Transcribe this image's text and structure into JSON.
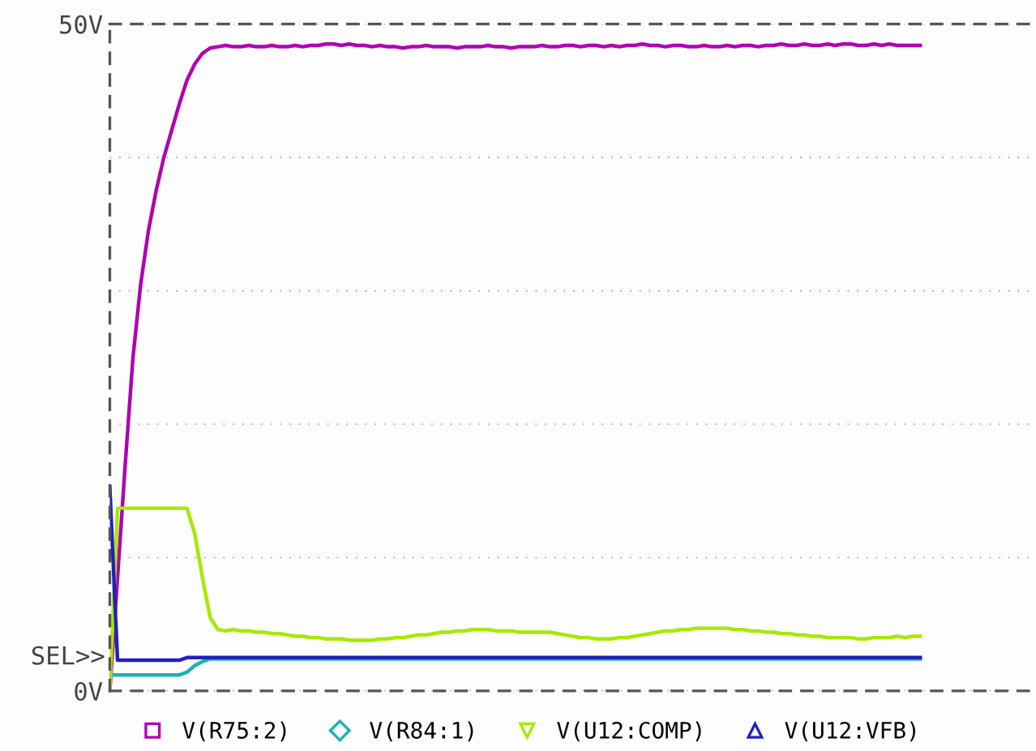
{
  "chart_data": {
    "type": "line",
    "categories": [
      null,
      null,
      null,
      null,
      null,
      null,
      null,
      null,
      null,
      null,
      null,
      null,
      null,
      null,
      null,
      null,
      null,
      null,
      null,
      null,
      null,
      null,
      null,
      null,
      null,
      null,
      null,
      null,
      null,
      null,
      null,
      null,
      null,
      null,
      null,
      null,
      null,
      null,
      null,
      null,
      null,
      null,
      null,
      null,
      null,
      null,
      null,
      null,
      null,
      null,
      null,
      null,
      null,
      null,
      null,
      null,
      null,
      null,
      null,
      null,
      null,
      null,
      null,
      null,
      null,
      null,
      null,
      null,
      null,
      null,
      null,
      null,
      null,
      null,
      null,
      null,
      null,
      null,
      null,
      null,
      null,
      null,
      null,
      null,
      null,
      null,
      null,
      null,
      null,
      null,
      null,
      null,
      null,
      null,
      null,
      null,
      null,
      null,
      null,
      null,
      null,
      null,
      null,
      null,
      null,
      null,
      null,
      null,
      null,
      null,
      null,
      null,
      null,
      null,
      null,
      null,
      null,
      null,
      null,
      null,
      null
    ],
    "series": [
      {
        "name": "V(R75:2)",
        "color": "#b000b0",
        "values": [
          0,
          8.5,
          17,
          25,
          30.5,
          34.5,
          37.5,
          40,
          42,
          44,
          45.8,
          47,
          47.8,
          48.2,
          48.3,
          48.4,
          48.3,
          48.3,
          48.4,
          48.3,
          48.3,
          48.4,
          48.3,
          48.3,
          48.4,
          48.3,
          48.4,
          48.4,
          48.5,
          48.5,
          48.4,
          48.5,
          48.4,
          48.4,
          48.3,
          48.4,
          48.3,
          48.3,
          48.2,
          48.3,
          48.3,
          48.4,
          48.3,
          48.3,
          48.3,
          48.2,
          48.3,
          48.3,
          48.3,
          48.4,
          48.3,
          48.3,
          48.2,
          48.3,
          48.3,
          48.3,
          48.4,
          48.3,
          48.3,
          48.4,
          48.4,
          48.3,
          48.4,
          48.4,
          48.3,
          48.4,
          48.3,
          48.4,
          48.4,
          48.5,
          48.4,
          48.4,
          48.3,
          48.4,
          48.4,
          48.3,
          48.3,
          48.4,
          48.3,
          48.3,
          48.4,
          48.3,
          48.4,
          48.4,
          48.3,
          48.4,
          48.4,
          48.5,
          48.4,
          48.4,
          48.5,
          48.4,
          48.4,
          48.5,
          48.4,
          48.5,
          48.5,
          48.4,
          48.4,
          48.5,
          48.4,
          48.5,
          48.4,
          48.4,
          48.4,
          48.4,
          null,
          null,
          null,
          null,
          null,
          null,
          null,
          null,
          null,
          null,
          null,
          null,
          null,
          null,
          null
        ]
      },
      {
        "name": "V(R84:1)",
        "color": "#20b0b0",
        "values": [
          1.2,
          1.2,
          1.2,
          1.2,
          1.2,
          1.2,
          1.2,
          1.2,
          1.2,
          1.2,
          1.4,
          1.9,
          2.2,
          2.4,
          2.4,
          2.4,
          2.4,
          2.4,
          2.4,
          2.4,
          2.4,
          2.4,
          2.4,
          2.4,
          2.4,
          2.4,
          2.4,
          2.4,
          2.4,
          2.4,
          2.4,
          2.4,
          2.4,
          2.4,
          2.4,
          2.4,
          2.4,
          2.4,
          2.4,
          2.4,
          2.4,
          2.4,
          2.4,
          2.4,
          2.4,
          2.4,
          2.4,
          2.4,
          2.4,
          2.4,
          2.4,
          2.4,
          2.4,
          2.4,
          2.4,
          2.4,
          2.4,
          2.4,
          2.4,
          2.4,
          2.4,
          2.4,
          2.4,
          2.4,
          2.4,
          2.4,
          2.4,
          2.4,
          2.4,
          2.4,
          2.4,
          2.4,
          2.4,
          2.4,
          2.4,
          2.4,
          2.4,
          2.4,
          2.4,
          2.4,
          2.4,
          2.4,
          2.4,
          2.4,
          2.4,
          2.4,
          2.4,
          2.4,
          2.4,
          2.4,
          2.4,
          2.4,
          2.4,
          2.4,
          2.4,
          2.4,
          2.4,
          2.4,
          2.4,
          2.4,
          2.4,
          2.4,
          2.4,
          2.4,
          2.4,
          2.4,
          null,
          null,
          null,
          null,
          null,
          null,
          null,
          null,
          null,
          null,
          null,
          null,
          null,
          null,
          null
        ]
      },
      {
        "name": "V(U12:COMP)",
        "color": "#a8e800",
        "values": [
          0,
          13.7,
          13.7,
          13.7,
          13.7,
          13.7,
          13.7,
          13.7,
          13.7,
          13.7,
          13.7,
          11.8,
          8.5,
          5.5,
          4.6,
          4.5,
          4.6,
          4.5,
          4.5,
          4.4,
          4.4,
          4.3,
          4.3,
          4.2,
          4.1,
          4.1,
          4.0,
          4.0,
          3.9,
          3.9,
          3.9,
          3.8,
          3.8,
          3.8,
          3.8,
          3.9,
          3.9,
          4.0,
          4.0,
          4.1,
          4.2,
          4.2,
          4.3,
          4.4,
          4.4,
          4.5,
          4.5,
          4.6,
          4.6,
          4.6,
          4.5,
          4.5,
          4.5,
          4.4,
          4.4,
          4.4,
          4.4,
          4.4,
          4.3,
          4.2,
          4.1,
          4.0,
          4.0,
          3.9,
          3.9,
          3.9,
          4.0,
          4.0,
          4.1,
          4.2,
          4.3,
          4.4,
          4.5,
          4.5,
          4.6,
          4.6,
          4.7,
          4.7,
          4.7,
          4.7,
          4.7,
          4.6,
          4.6,
          4.5,
          4.5,
          4.4,
          4.4,
          4.3,
          4.3,
          4.2,
          4.2,
          4.1,
          4.1,
          4.0,
          4.0,
          4.0,
          4.0,
          3.9,
          3.9,
          4.0,
          4.0,
          4.0,
          4.1,
          4.0,
          4.1,
          4.1,
          null,
          null,
          null,
          null,
          null,
          null,
          null,
          null,
          null,
          null,
          null,
          null,
          null,
          null,
          null
        ]
      },
      {
        "name": "V(U12:VFB)",
        "color": "#2020c0",
        "values": [
          15.3,
          2.3,
          2.3,
          2.3,
          2.3,
          2.3,
          2.3,
          2.3,
          2.3,
          2.3,
          2.5,
          2.5,
          2.5,
          2.5,
          2.5,
          2.5,
          2.5,
          2.5,
          2.5,
          2.5,
          2.5,
          2.5,
          2.5,
          2.5,
          2.5,
          2.5,
          2.5,
          2.5,
          2.5,
          2.5,
          2.5,
          2.5,
          2.5,
          2.5,
          2.5,
          2.5,
          2.5,
          2.5,
          2.5,
          2.5,
          2.5,
          2.5,
          2.5,
          2.5,
          2.5,
          2.5,
          2.5,
          2.5,
          2.5,
          2.5,
          2.5,
          2.5,
          2.5,
          2.5,
          2.5,
          2.5,
          2.5,
          2.5,
          2.5,
          2.5,
          2.5,
          2.5,
          2.5,
          2.5,
          2.5,
          2.5,
          2.5,
          2.5,
          2.5,
          2.5,
          2.5,
          2.5,
          2.5,
          2.5,
          2.5,
          2.5,
          2.5,
          2.5,
          2.5,
          2.5,
          2.5,
          2.5,
          2.5,
          2.5,
          2.5,
          2.5,
          2.5,
          2.5,
          2.5,
          2.5,
          2.5,
          2.5,
          2.5,
          2.5,
          2.5,
          2.5,
          2.5,
          2.5,
          2.5,
          2.5,
          2.5,
          2.5,
          2.5,
          2.5,
          2.5,
          2.5,
          null,
          null,
          null,
          null,
          null,
          null,
          null,
          null,
          null,
          null,
          null,
          null,
          null,
          null,
          null
        ]
      }
    ],
    "ylim": [
      0,
      50
    ],
    "yticks": [
      {
        "value": 0,
        "label": "0V"
      },
      {
        "value": 10,
        "label": null
      },
      {
        "value": 20,
        "label": null
      },
      {
        "value": 30,
        "label": null
      },
      {
        "value": 40,
        "label": null
      },
      {
        "value": 50,
        "label": "50V"
      }
    ],
    "tick_labels": "y",
    "grid": "y",
    "legend": "bottom",
    "annotations": [
      "SEL>>"
    ]
  }
}
